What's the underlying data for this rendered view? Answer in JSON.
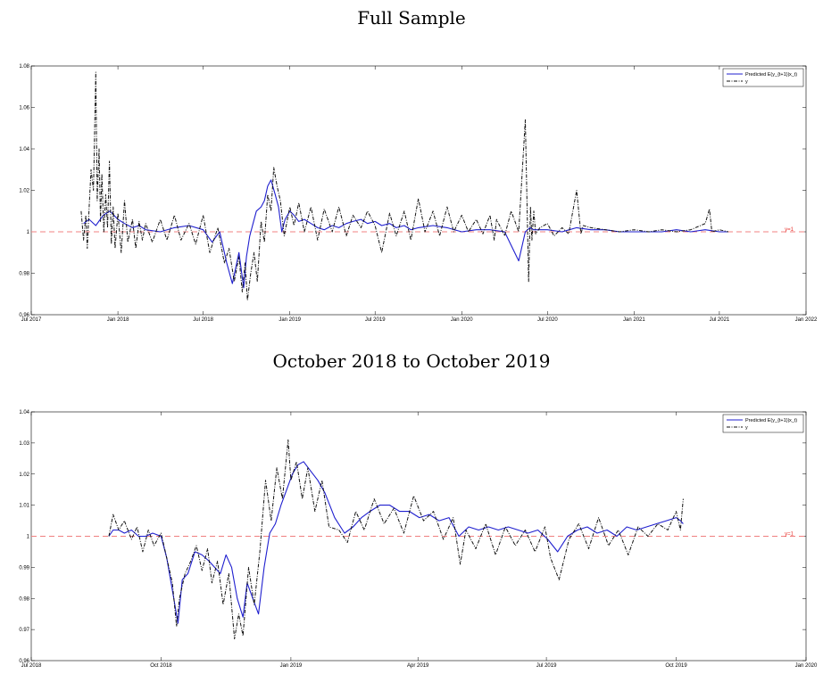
{
  "chart_data": [
    {
      "type": "line",
      "title": "Full Sample",
      "x_range": [
        "2017-07-01",
        "2022-01-01"
      ],
      "ylim": [
        0.96,
        1.08
      ],
      "yticks": [
        "0.96",
        "0.98",
        "1",
        "1.02",
        "1.04",
        "1.06",
        "1.08"
      ],
      "xticks": [
        {
          "date": "2017-07-01",
          "label": "Jul 2017"
        },
        {
          "date": "2018-01-01",
          "label": "Jan 2018"
        },
        {
          "date": "2018-07-01",
          "label": "Jul 2018"
        },
        {
          "date": "2019-01-01",
          "label": "Jan 2019"
        },
        {
          "date": "2019-07-01",
          "label": "Jul 2019"
        },
        {
          "date": "2020-01-01",
          "label": "Jan 2020"
        },
        {
          "date": "2020-07-01",
          "label": "Jul 2020"
        },
        {
          "date": "2021-01-01",
          "label": "Jan 2021"
        },
        {
          "date": "2021-07-01",
          "label": "Jul 2021"
        },
        {
          "date": "2022-01-01",
          "label": "Jan 2022"
        }
      ],
      "legend": {
        "position": "top-right",
        "entries": [
          "Predicted E(y_{t+1}|x_t)",
          "y"
        ]
      },
      "reference_line": {
        "y": 1,
        "label": "y=1",
        "color": "#f08080"
      },
      "grid": false,
      "series": [
        {
          "name": "Predicted E(y_{t+1}|x_t)",
          "color": "#1f1fcf",
          "style": "solid",
          "x": [
            "2017-10-20",
            "2017-11-01",
            "2017-11-15",
            "2017-12-01",
            "2017-12-15",
            "2018-01-01",
            "2018-01-15",
            "2018-02-01",
            "2018-02-15",
            "2018-03-01",
            "2018-04-01",
            "2018-05-01",
            "2018-06-01",
            "2018-07-01",
            "2018-07-20",
            "2018-08-05",
            "2018-08-20",
            "2018-09-01",
            "2018-09-15",
            "2018-09-25",
            "2018-10-01",
            "2018-10-08",
            "2018-10-15",
            "2018-10-22",
            "2018-11-01",
            "2018-11-08",
            "2018-11-15",
            "2018-11-22",
            "2018-12-01",
            "2018-12-08",
            "2018-12-15",
            "2018-12-22",
            "2019-01-01",
            "2019-01-10",
            "2019-01-20",
            "2019-02-01",
            "2019-02-15",
            "2019-03-01",
            "2019-03-15",
            "2019-04-01",
            "2019-04-15",
            "2019-05-01",
            "2019-05-15",
            "2019-06-01",
            "2019-06-15",
            "2019-07-01",
            "2019-07-15",
            "2019-08-01",
            "2019-08-15",
            "2019-09-01",
            "2019-09-15",
            "2019-10-01",
            "2019-11-01",
            "2019-12-01",
            "2020-01-01",
            "2020-02-01",
            "2020-03-01",
            "2020-04-01",
            "2020-05-01",
            "2020-05-15",
            "2020-05-25",
            "2020-06-01",
            "2020-06-15",
            "2020-07-01",
            "2020-08-01",
            "2020-09-01",
            "2020-10-01",
            "2020-11-01",
            "2020-12-01",
            "2021-01-01",
            "2021-02-01",
            "2021-03-01",
            "2021-04-01",
            "2021-05-01",
            "2021-06-01",
            "2021-07-01",
            "2021-07-20"
          ],
          "y": [
            1.004,
            1.006,
            1.003,
            1.008,
            1.01,
            1.006,
            1.004,
            1.002,
            1.003,
            1.001,
            1.0,
            1.002,
            1.003,
            1.001,
            0.995,
            1.0,
            0.985,
            0.975,
            0.99,
            0.973,
            0.988,
            0.998,
            1.004,
            1.01,
            1.012,
            1.015,
            1.022,
            1.025,
            1.018,
            1.012,
            1.0,
            1.006,
            1.01,
            1.008,
            1.005,
            1.006,
            1.004,
            1.002,
            1.001,
            1.003,
            1.002,
            1.004,
            1.005,
            1.006,
            1.004,
            1.005,
            1.003,
            1.004,
            1.002,
            1.003,
            1.001,
            1.002,
            1.003,
            1.002,
            1.0,
            1.001,
            1.001,
            1.0,
            0.986,
            1.0,
            1.002,
            1.001,
            1.001,
            1.001,
            1.0,
            1.002,
            1.001,
            1.001,
            1.0,
            1.0,
            1.0,
            1.0,
            1.001,
            1.0,
            1.001,
            1.0,
            1.0
          ]
        },
        {
          "name": "y",
          "color": "#111111",
          "style": "dashdot",
          "x": [
            "2017-10-15",
            "2017-10-20",
            "2017-10-25",
            "2017-10-28",
            "2017-11-01",
            "2017-11-05",
            "2017-11-10",
            "2017-11-15",
            "2017-11-18",
            "2017-11-22",
            "2017-11-25",
            "2017-11-28",
            "2017-12-02",
            "2017-12-06",
            "2017-12-10",
            "2017-12-14",
            "2017-12-18",
            "2017-12-22",
            "2017-12-26",
            "2018-01-01",
            "2018-01-08",
            "2018-01-15",
            "2018-01-22",
            "2018-02-01",
            "2018-02-08",
            "2018-02-15",
            "2018-02-22",
            "2018-03-01",
            "2018-03-15",
            "2018-04-01",
            "2018-04-15",
            "2018-05-01",
            "2018-05-15",
            "2018-06-01",
            "2018-06-15",
            "2018-07-01",
            "2018-07-15",
            "2018-08-01",
            "2018-08-15",
            "2018-08-25",
            "2018-09-05",
            "2018-09-15",
            "2018-09-22",
            "2018-09-28",
            "2018-10-03",
            "2018-10-10",
            "2018-10-17",
            "2018-10-24",
            "2018-11-01",
            "2018-11-08",
            "2018-11-15",
            "2018-11-22",
            "2018-11-28",
            "2018-12-05",
            "2018-12-12",
            "2018-12-20",
            "2019-01-01",
            "2019-01-10",
            "2019-01-20",
            "2019-02-01",
            "2019-02-15",
            "2019-03-01",
            "2019-03-15",
            "2019-04-01",
            "2019-04-15",
            "2019-05-01",
            "2019-05-15",
            "2019-06-01",
            "2019-06-15",
            "2019-07-01",
            "2019-07-15",
            "2019-08-01",
            "2019-08-15",
            "2019-09-01",
            "2019-09-15",
            "2019-10-01",
            "2019-10-15",
            "2019-11-01",
            "2019-11-15",
            "2019-12-01",
            "2019-12-15",
            "2020-01-01",
            "2020-01-15",
            "2020-02-01",
            "2020-02-15",
            "2020-03-01",
            "2020-03-10",
            "2020-03-15",
            "2020-04-01",
            "2020-04-15",
            "2020-05-01",
            "2020-05-15",
            "2020-05-22",
            "2020-05-26",
            "2020-05-29",
            "2020-06-02",
            "2020-06-06",
            "2020-06-15",
            "2020-07-01",
            "2020-07-15",
            "2020-08-01",
            "2020-08-15",
            "2020-09-01",
            "2020-09-10",
            "2020-09-15",
            "2020-10-01",
            "2020-11-01",
            "2020-12-01",
            "2021-01-01",
            "2021-02-01",
            "2021-03-01",
            "2021-04-01",
            "2021-05-01",
            "2021-06-01",
            "2021-06-10",
            "2021-06-15",
            "2021-07-01",
            "2021-07-20"
          ],
          "y": [
            1.01,
            0.996,
            1.008,
            0.992,
            1.012,
            1.03,
            1.02,
            1.077,
            1.015,
            1.04,
            1.005,
            1.028,
            1.0,
            1.018,
            1.002,
            1.034,
            0.994,
            1.012,
            0.992,
            1.009,
            0.99,
            1.015,
            0.995,
            1.006,
            0.992,
            1.005,
            0.996,
            1.004,
            0.995,
            1.006,
            0.996,
            1.008,
            0.996,
            1.004,
            0.994,
            1.008,
            0.99,
            1.002,
            0.985,
            0.992,
            0.976,
            0.988,
            0.971,
            0.985,
            0.967,
            0.98,
            0.99,
            0.976,
            1.005,
            0.995,
            1.018,
            1.01,
            1.031,
            1.022,
            1.015,
            0.998,
            1.012,
            1.003,
            1.014,
            1.0,
            1.012,
            0.996,
            1.011,
            1.0,
            1.012,
            0.998,
            1.008,
            1.002,
            1.01,
            1.003,
            0.99,
            1.009,
            0.998,
            1.01,
            0.996,
            1.016,
            1.0,
            1.01,
            0.998,
            1.012,
            1.0,
            1.008,
            1.0,
            1.006,
            0.999,
            1.008,
            0.996,
            1.006,
            0.998,
            1.01,
            1.0,
            1.054,
            0.976,
            1.012,
            0.996,
            1.01,
            0.999,
            1.002,
            1.004,
            0.998,
            1.002,
            0.999,
            1.02,
            0.999,
            1.003,
            1.002,
            1.001,
            1.0,
            1.001,
            1.0,
            1.001,
            1.0,
            1.001,
            1.004,
            1.011,
            1.0,
            1.001,
            1.0
          ]
        }
      ]
    },
    {
      "type": "line",
      "title": "October 2018 to October 2019",
      "x_range": [
        "2018-07-01",
        "2020-01-01"
      ],
      "ylim": [
        0.96,
        1.04
      ],
      "yticks": [
        "0.96",
        "0.97",
        "0.98",
        "0.99",
        "1",
        "1.01",
        "1.02",
        "1.03",
        "1.04"
      ],
      "xticks": [
        {
          "date": "2018-07-01",
          "label": "Jul 2018"
        },
        {
          "date": "2018-10-01",
          "label": "Oct 2018"
        },
        {
          "date": "2019-01-01",
          "label": "Jan 2019"
        },
        {
          "date": "2019-04-01",
          "label": "Apr 2019"
        },
        {
          "date": "2019-07-01",
          "label": "Jul 2019"
        },
        {
          "date": "2019-10-01",
          "label": "Oct 2019"
        },
        {
          "date": "2020-01-01",
          "label": "Jan 2020"
        }
      ],
      "legend": {
        "position": "top-right",
        "entries": [
          "Predicted E(y_{t+1}|x_t)",
          "y"
        ]
      },
      "reference_line": {
        "y": 1,
        "label": "y=1",
        "color": "#f08080"
      },
      "grid": false,
      "series": [
        {
          "name": "Predicted E(y_{t+1}|x_t)",
          "color": "#1f1fcf",
          "style": "solid",
          "x": [
            "2018-08-25",
            "2018-08-28",
            "2018-09-01",
            "2018-09-05",
            "2018-09-10",
            "2018-09-15",
            "2018-09-20",
            "2018-09-25",
            "2018-10-01",
            "2018-10-05",
            "2018-10-10",
            "2018-10-13",
            "2018-10-16",
            "2018-10-20",
            "2018-10-25",
            "2018-10-30",
            "2018-11-04",
            "2018-11-08",
            "2018-11-12",
            "2018-11-16",
            "2018-11-20",
            "2018-11-24",
            "2018-11-28",
            "2018-12-01",
            "2018-12-05",
            "2018-12-09",
            "2018-12-13",
            "2018-12-17",
            "2018-12-21",
            "2018-12-25",
            "2018-12-29",
            "2019-01-02",
            "2019-01-06",
            "2019-01-10",
            "2019-01-15",
            "2019-01-20",
            "2019-01-25",
            "2019-02-01",
            "2019-02-08",
            "2019-02-14",
            "2019-02-20",
            "2019-02-26",
            "2019-03-05",
            "2019-03-12",
            "2019-03-19",
            "2019-03-26",
            "2019-04-02",
            "2019-04-09",
            "2019-04-16",
            "2019-04-23",
            "2019-04-30",
            "2019-05-07",
            "2019-05-14",
            "2019-05-21",
            "2019-05-28",
            "2019-06-04",
            "2019-06-11",
            "2019-06-18",
            "2019-06-25",
            "2019-07-02",
            "2019-07-09",
            "2019-07-16",
            "2019-07-23",
            "2019-07-30",
            "2019-08-06",
            "2019-08-13",
            "2019-08-20",
            "2019-08-27",
            "2019-09-03",
            "2019-09-10",
            "2019-09-17",
            "2019-09-24",
            "2019-10-01",
            "2019-10-04",
            "2019-10-06"
          ],
          "y": [
            1.0,
            1.002,
            1.002,
            1.001,
            1.002,
            1.0,
            1.0,
            1.001,
            1.0,
            0.993,
            0.98,
            0.972,
            0.986,
            0.988,
            0.995,
            0.994,
            0.992,
            0.99,
            0.988,
            0.994,
            0.99,
            0.98,
            0.974,
            0.985,
            0.98,
            0.975,
            0.99,
            1.001,
            1.004,
            1.01,
            1.015,
            1.02,
            1.023,
            1.024,
            1.021,
            1.018,
            1.014,
            1.006,
            1.001,
            1.003,
            1.006,
            1.008,
            1.01,
            1.01,
            1.008,
            1.008,
            1.006,
            1.007,
            1.005,
            1.006,
            1.0,
            1.003,
            1.002,
            1.003,
            1.002,
            1.003,
            1.002,
            1.001,
            1.002,
            0.999,
            0.995,
            1.0,
            1.002,
            1.003,
            1.001,
            1.002,
            1.0,
            1.003,
            1.002,
            1.003,
            1.004,
            1.005,
            1.006,
            1.005,
            1.004
          ]
        },
        {
          "name": "y",
          "color": "#111111",
          "style": "dashdot",
          "x": [
            "2018-08-25",
            "2018-08-28",
            "2018-09-01",
            "2018-09-05",
            "2018-09-10",
            "2018-09-14",
            "2018-09-18",
            "2018-09-22",
            "2018-09-26",
            "2018-10-01",
            "2018-10-05",
            "2018-10-09",
            "2018-10-12",
            "2018-10-14",
            "2018-10-18",
            "2018-10-22",
            "2018-10-26",
            "2018-10-30",
            "2018-11-03",
            "2018-11-06",
            "2018-11-10",
            "2018-11-14",
            "2018-11-18",
            "2018-11-22",
            "2018-11-25",
            "2018-11-28",
            "2018-12-02",
            "2018-12-06",
            "2018-12-10",
            "2018-12-14",
            "2018-12-18",
            "2018-12-22",
            "2018-12-26",
            "2018-12-30",
            "2019-01-01",
            "2019-01-05",
            "2019-01-09",
            "2019-01-13",
            "2019-01-18",
            "2019-01-23",
            "2019-01-28",
            "2019-02-04",
            "2019-02-10",
            "2019-02-16",
            "2019-02-22",
            "2019-03-01",
            "2019-03-08",
            "2019-03-15",
            "2019-03-22",
            "2019-03-29",
            "2019-04-05",
            "2019-04-12",
            "2019-04-19",
            "2019-04-26",
            "2019-05-01",
            "2019-05-05",
            "2019-05-12",
            "2019-05-19",
            "2019-05-26",
            "2019-06-02",
            "2019-06-09",
            "2019-06-16",
            "2019-06-23",
            "2019-06-30",
            "2019-07-04",
            "2019-07-10",
            "2019-07-17",
            "2019-07-24",
            "2019-07-31",
            "2019-08-07",
            "2019-08-14",
            "2019-08-21",
            "2019-08-28",
            "2019-09-04",
            "2019-09-11",
            "2019-09-18",
            "2019-09-25",
            "2019-10-01",
            "2019-10-04",
            "2019-10-06"
          ],
          "y": [
            1.0,
            1.007,
            1.002,
            1.005,
            0.999,
            1.003,
            0.995,
            1.002,
            0.997,
            1.001,
            0.993,
            0.985,
            0.971,
            0.98,
            0.988,
            0.992,
            0.997,
            0.989,
            0.996,
            0.985,
            0.992,
            0.978,
            0.988,
            0.967,
            0.975,
            0.968,
            0.99,
            0.978,
            0.995,
            1.018,
            1.005,
            1.022,
            1.012,
            1.031,
            1.018,
            1.024,
            1.012,
            1.022,
            1.008,
            1.018,
            1.003,
            1.002,
            0.998,
            1.008,
            1.002,
            1.012,
            1.004,
            1.009,
            1.001,
            1.013,
            1.005,
            1.008,
            0.999,
            1.006,
            0.991,
            1.002,
            0.996,
            1.004,
            0.994,
            1.003,
            0.997,
            1.002,
            0.995,
            1.003,
            0.993,
            0.986,
            0.999,
            1.004,
            0.996,
            1.006,
            0.997,
            1.002,
            0.994,
            1.003,
            1.0,
            1.004,
            1.002,
            1.008,
            1.002,
            1.012
          ]
        }
      ]
    }
  ]
}
